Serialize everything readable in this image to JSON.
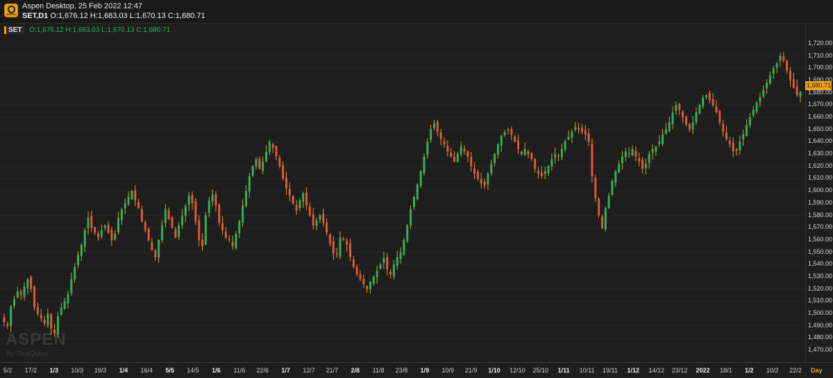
{
  "header": {
    "app_title": "Aspen Desktop, 25 Feb 2022 12:47",
    "symbol_tf": "SET,D1",
    "ohlc": "O:1,676.12 H:1,683.03 L:1,670.13 C:1,680.71",
    "logo_text": "ASPEN"
  },
  "legend": {
    "symbol": "SET",
    "ohlc": "O:1,676.12 H:1,683.03 L:1,670.13 C:1,680.71"
  },
  "price_tag": "1,680.71",
  "timeframe_label": "Day",
  "watermark": {
    "brand": "ASPEN",
    "by": "by ThaiQuest"
  },
  "colors": {
    "up": "#2bb35a",
    "down": "#e8543c",
    "wick": "#d9a21b",
    "background": "#1e1e1e",
    "accent": "#f0a11a"
  },
  "chart_data": {
    "type": "candlestick",
    "symbol": "SET",
    "timeframe": "D1",
    "ylim": [
      1465,
      1725
    ],
    "y_ticks": [
      "1,720.00",
      "1,710.00",
      "1,700.00",
      "1,690.00",
      "1,680.00",
      "1,670.00",
      "1,660.00",
      "1,650.00",
      "1,640.00",
      "1,630.00",
      "1,620.00",
      "1,610.00",
      "1,600.00",
      "1,590.00",
      "1,580.00",
      "1,570.00",
      "1,560.00",
      "1,550.00",
      "1,540.00",
      "1,530.00",
      "1,520.00",
      "1,510.00",
      "1,500.00",
      "1,490.00",
      "1,480.00",
      "1,470.00"
    ],
    "x_labels": [
      {
        "t": "5/2",
        "bold": false
      },
      {
        "t": "17/2",
        "bold": false
      },
      {
        "t": "1/3",
        "bold": true
      },
      {
        "t": "10/3",
        "bold": false
      },
      {
        "t": "19/3",
        "bold": false
      },
      {
        "t": "1/4",
        "bold": true
      },
      {
        "t": "16/4",
        "bold": false
      },
      {
        "t": "5/5",
        "bold": true
      },
      {
        "t": "14/5",
        "bold": false
      },
      {
        "t": "1/6",
        "bold": true
      },
      {
        "t": "11/6",
        "bold": false
      },
      {
        "t": "22/6",
        "bold": false
      },
      {
        "t": "1/7",
        "bold": true
      },
      {
        "t": "12/7",
        "bold": false
      },
      {
        "t": "21/7",
        "bold": false
      },
      {
        "t": "2/8",
        "bold": true
      },
      {
        "t": "11/8",
        "bold": false
      },
      {
        "t": "23/8",
        "bold": false
      },
      {
        "t": "1/9",
        "bold": true
      },
      {
        "t": "10/9",
        "bold": false
      },
      {
        "t": "21/9",
        "bold": false
      },
      {
        "t": "1/10",
        "bold": true
      },
      {
        "t": "12/10",
        "bold": false
      },
      {
        "t": "25/10",
        "bold": false
      },
      {
        "t": "1/11",
        "bold": true
      },
      {
        "t": "10/11",
        "bold": false
      },
      {
        "t": "19/11",
        "bold": false
      },
      {
        "t": "1/12",
        "bold": true
      },
      {
        "t": "14/12",
        "bold": false
      },
      {
        "t": "23/12",
        "bold": false
      },
      {
        "t": "2022",
        "bold": true
      },
      {
        "t": "18/1",
        "bold": false
      },
      {
        "t": "1/2",
        "bold": true
      },
      {
        "t": "10/2",
        "bold": false
      },
      {
        "t": "22/2",
        "bold": false
      }
    ],
    "close_path": [
      1493,
      1490,
      1506,
      1512,
      1518,
      1515,
      1522,
      1528,
      1520,
      1505,
      1500,
      1496,
      1492,
      1500,
      1488,
      1484,
      1498,
      1505,
      1510,
      1516,
      1528,
      1538,
      1548,
      1556,
      1568,
      1578,
      1570,
      1566,
      1562,
      1568,
      1572,
      1566,
      1560,
      1565,
      1578,
      1585,
      1590,
      1595,
      1600,
      1592,
      1586,
      1575,
      1568,
      1560,
      1552,
      1546,
      1560,
      1572,
      1585,
      1577,
      1570,
      1562,
      1572,
      1580,
      1588,
      1596,
      1590,
      1575,
      1560,
      1555,
      1580,
      1592,
      1597,
      1588,
      1574,
      1568,
      1562,
      1560,
      1555,
      1565,
      1575,
      1588,
      1600,
      1612,
      1620,
      1626,
      1618,
      1624,
      1632,
      1640,
      1635,
      1628,
      1620,
      1610,
      1602,
      1596,
      1590,
      1584,
      1592,
      1598,
      1588,
      1580,
      1572,
      1576,
      1580,
      1574,
      1566,
      1557,
      1549,
      1548,
      1562,
      1560,
      1556,
      1546,
      1538,
      1532,
      1528,
      1524,
      1520,
      1526,
      1530,
      1535,
      1540,
      1545,
      1536,
      1532,
      1540,
      1546,
      1550,
      1560,
      1572,
      1585,
      1595,
      1605,
      1616,
      1628,
      1640,
      1650,
      1655,
      1648,
      1642,
      1638,
      1632,
      1628,
      1624,
      1630,
      1636,
      1632,
      1628,
      1620,
      1614,
      1610,
      1606,
      1604,
      1614,
      1622,
      1630,
      1638,
      1645,
      1648,
      1650,
      1646,
      1640,
      1634,
      1630,
      1634,
      1630,
      1626,
      1618,
      1614,
      1612,
      1616,
      1620,
      1626,
      1630,
      1628,
      1634,
      1640,
      1644,
      1648,
      1652,
      1650,
      1648,
      1646,
      1640,
      1612,
      1594,
      1580,
      1570,
      1586,
      1596,
      1608,
      1616,
      1622,
      1628,
      1632,
      1630,
      1634,
      1628,
      1624,
      1618,
      1622,
      1630,
      1634,
      1636,
      1640,
      1646,
      1650,
      1656,
      1664,
      1670,
      1666,
      1660,
      1654,
      1650,
      1656,
      1664,
      1670,
      1676,
      1678,
      1674,
      1670,
      1664,
      1656,
      1648,
      1642,
      1638,
      1632,
      1634,
      1640,
      1646,
      1654,
      1660,
      1666,
      1672,
      1676,
      1682,
      1688,
      1694,
      1700,
      1704,
      1710,
      1706,
      1698,
      1690,
      1684,
      1678,
      1680.71
    ]
  }
}
